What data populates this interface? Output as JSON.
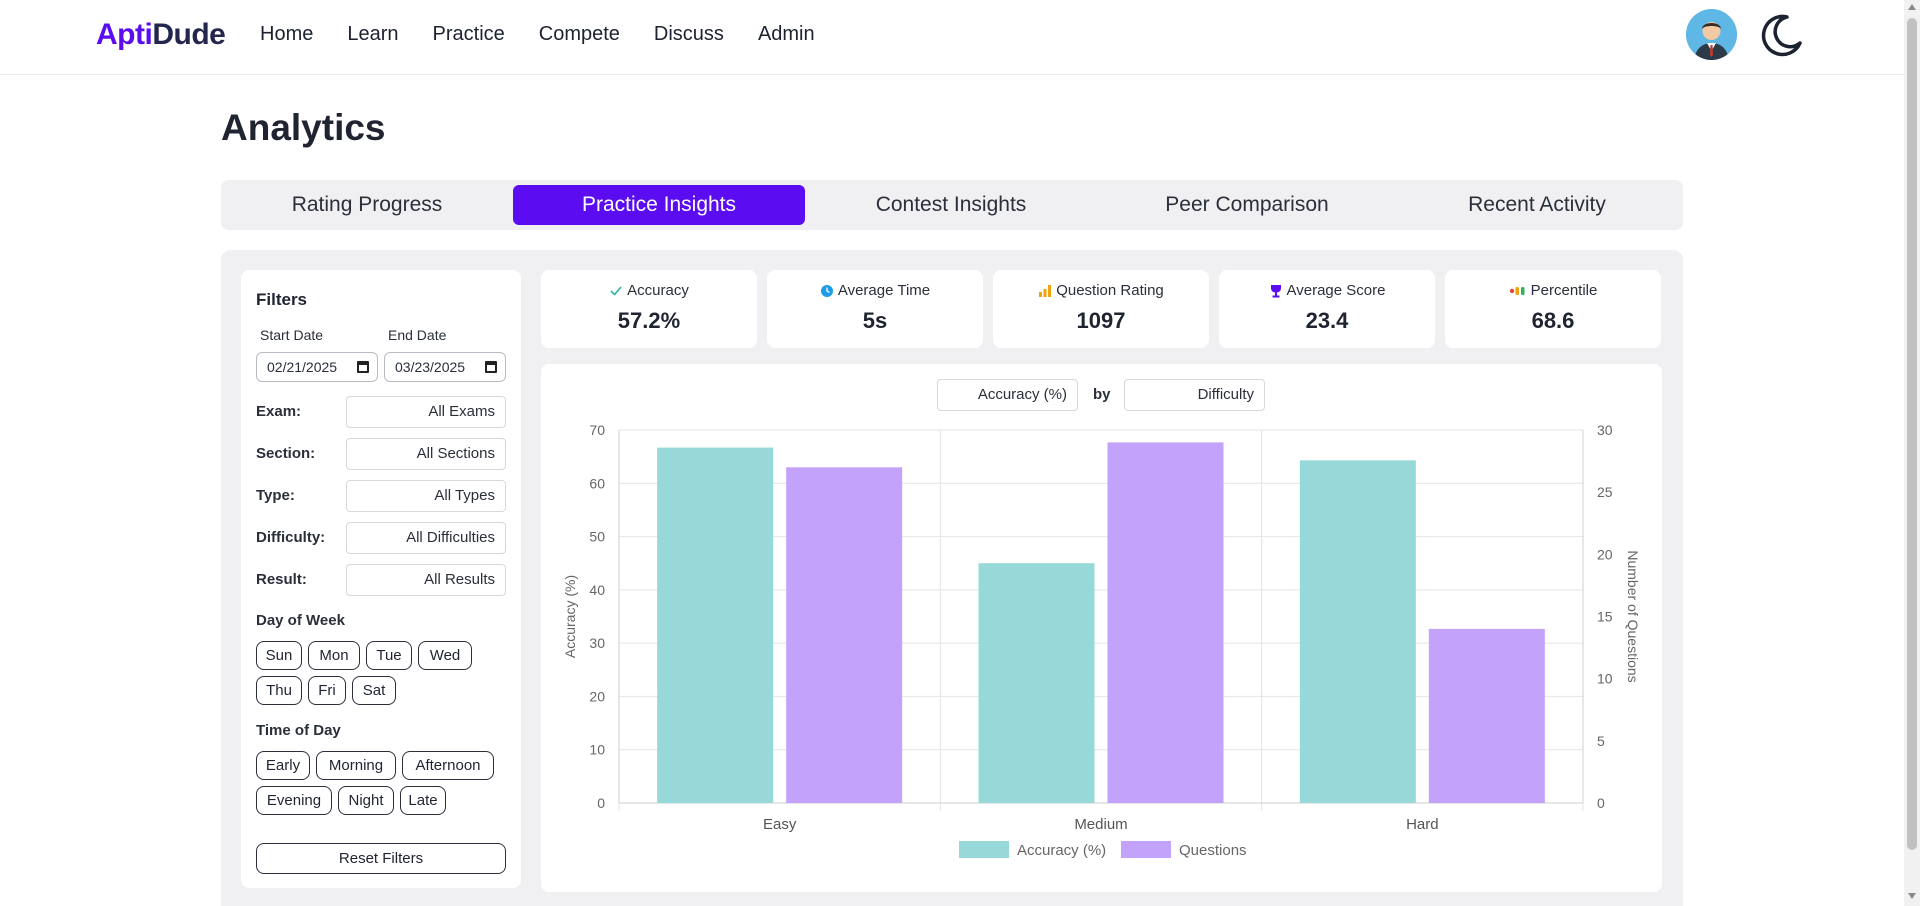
{
  "brand": {
    "part1": "Apti",
    "part2": "Dude"
  },
  "nav": [
    "Home",
    "Learn",
    "Practice",
    "Compete",
    "Discuss",
    "Admin"
  ],
  "page": {
    "title": "Analytics"
  },
  "tabs": [
    "Rating Progress",
    "Practice Insights",
    "Contest Insights",
    "Peer Comparison",
    "Recent Activity"
  ],
  "active_tab": "Practice Insights",
  "filters": {
    "title": "Filters",
    "start_label": "Start Date",
    "end_label": "End Date",
    "start_date": "02/21/2025",
    "end_date": "03/23/2025",
    "selects": [
      {
        "label": "Exam:",
        "value": "All Exams"
      },
      {
        "label": "Section:",
        "value": "All Sections"
      },
      {
        "label": "Type:",
        "value": "All Types"
      },
      {
        "label": "Difficulty:",
        "value": "All Difficulties"
      },
      {
        "label": "Result:",
        "value": "All Results"
      }
    ],
    "day_label": "Day of Week",
    "days": [
      "Sun",
      "Mon",
      "Tue",
      "Wed",
      "Thu",
      "Fri",
      "Sat"
    ],
    "time_label": "Time of Day",
    "times": [
      "Early",
      "Morning",
      "Afternoon",
      "Evening",
      "Night",
      "Late"
    ],
    "reset_label": "Reset Filters"
  },
  "stats": [
    {
      "label": "Accuracy",
      "value": "57.2%",
      "icon": "check-icon",
      "color": "#2bb3a3"
    },
    {
      "label": "Average Time",
      "value": "5s",
      "icon": "clock-icon",
      "color": "#1e9be9"
    },
    {
      "label": "Question Rating",
      "value": "1097",
      "icon": "bar-chart-icon",
      "color": "#f2a20c"
    },
    {
      "label": "Average Score",
      "value": "23.4",
      "icon": "trophy-icon",
      "color": "#5b0cf0"
    },
    {
      "label": "Percentile",
      "value": "68.6",
      "icon": "dots-icon",
      "color": "#e8453c"
    }
  ],
  "chart_controls": {
    "metric": "Accuracy (%)",
    "by": "by",
    "group": "Difficulty"
  },
  "chart_data": {
    "type": "bar",
    "categories": [
      "Easy",
      "Medium",
      "Hard"
    ],
    "series": [
      {
        "name": "Accuracy (%)",
        "values": [
          66.7,
          45.0,
          64.3
        ],
        "axis": "left",
        "color": "#96d9d8"
      },
      {
        "name": "Questions",
        "values": [
          27,
          29,
          14
        ],
        "axis": "right",
        "color": "#c2a2fb"
      }
    ],
    "ylabel": "Accuracy (%)",
    "y2label": "Number of Questions",
    "ylim": [
      0,
      70
    ],
    "y2lim": [
      0,
      30
    ],
    "yticks": [
      0,
      10,
      20,
      30,
      40,
      50,
      60,
      70
    ],
    "y2ticks": [
      0,
      5,
      10,
      15,
      20,
      25,
      30
    ],
    "legend": "bottom",
    "grid": true
  },
  "colors": {
    "accent": "#5b0cf0",
    "panel": "#f0f0f2"
  }
}
